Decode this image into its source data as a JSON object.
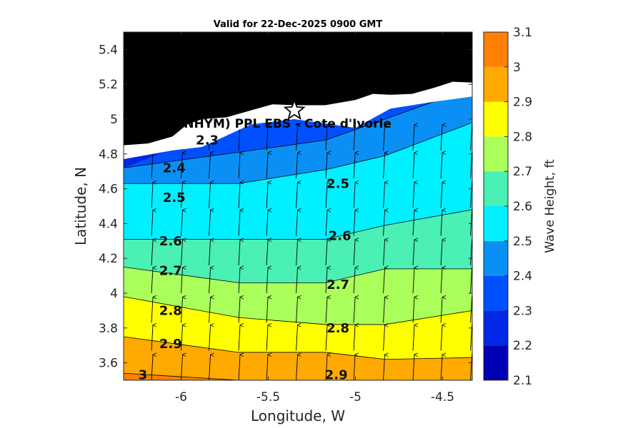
{
  "chart_data": {
    "type": "contour",
    "title": "Valid for 22-Dec-2025 0900 GMT",
    "xlabel": "Longitude, W",
    "ylabel": "Latitude, N",
    "xlim": [
      -6.33,
      -4.33
    ],
    "ylim": [
      3.5,
      5.5
    ],
    "xticks": [
      -6,
      -5.5,
      -5,
      -4.5
    ],
    "xtick_labels": [
      "-6",
      "-5.5",
      "-5",
      "-4.5"
    ],
    "yticks": [
      3.6,
      3.8,
      4,
      4.2,
      4.4,
      4.6,
      4.8,
      5,
      5.2,
      5.4
    ],
    "ytick_labels": [
      "3.6",
      "3.8",
      "4",
      "4.2",
      "4.4",
      "4.6",
      "4.8",
      "5",
      "5.2",
      "5.4"
    ],
    "colorbar": {
      "label": "Wave Height, ft",
      "range": [
        2.1,
        3.1
      ],
      "levels": [
        2.1,
        2.2,
        2.3,
        2.4,
        2.5,
        2.6,
        2.7,
        2.8,
        2.9,
        3.0,
        3.1
      ],
      "tick_labels": [
        "2.1",
        "2.2",
        "2.3",
        "2.4",
        "2.5",
        "2.6",
        "2.7",
        "2.8",
        "2.9",
        "3",
        "3.1"
      ],
      "colors": [
        "#0000b4",
        "#0028e6",
        "#0050ff",
        "#0a90f4",
        "#00f0ff",
        "#4af0b4",
        "#aaff5a",
        "#ffff00",
        "#ffaa00",
        "#ff8000"
      ]
    },
    "grid_lon": [
      -6.33,
      -5.67,
      -5.17,
      -4.83,
      -4.33
    ],
    "contours": [
      {
        "level": 2.4,
        "lat": [
          4.72,
          4.81,
          4.88,
          5.0,
          5.18
        ]
      },
      {
        "level": 2.5,
        "lat": [
          4.63,
          4.63,
          4.71,
          4.79,
          4.98
        ]
      },
      {
        "level": 2.6,
        "lat": [
          4.31,
          4.31,
          4.31,
          4.39,
          4.48
        ]
      },
      {
        "level": 2.7,
        "lat": [
          4.15,
          4.06,
          4.06,
          4.14,
          4.14
        ]
      },
      {
        "level": 2.8,
        "lat": [
          3.98,
          3.86,
          3.82,
          3.82,
          3.9
        ]
      },
      {
        "level": 2.9,
        "lat": [
          3.75,
          3.66,
          3.66,
          3.62,
          3.63
        ]
      },
      {
        "level": 3.0,
        "lat": [
          3.54,
          3.5,
          3.5,
          3.5,
          3.5
        ]
      }
    ],
    "contour_labels": [
      {
        "text": "2.3",
        "lon": -5.85,
        "lat": 4.88
      },
      {
        "text": "2.4",
        "lon": -6.04,
        "lat": 4.72
      },
      {
        "text": "2.5",
        "lon": -6.04,
        "lat": 4.55
      },
      {
        "text": "2.5",
        "lon": -5.1,
        "lat": 4.63
      },
      {
        "text": "2.6",
        "lon": -6.06,
        "lat": 4.3
      },
      {
        "text": "2.6",
        "lon": -5.09,
        "lat": 4.33
      },
      {
        "text": "2.7",
        "lon": -6.06,
        "lat": 4.13
      },
      {
        "text": "2.7",
        "lon": -5.1,
        "lat": 4.05
      },
      {
        "text": "2.8",
        "lon": -6.06,
        "lat": 3.9
      },
      {
        "text": "2.8",
        "lon": -5.1,
        "lat": 3.8
      },
      {
        "text": "2.9",
        "lon": -6.06,
        "lat": 3.71
      },
      {
        "text": "2.9",
        "lon": -5.11,
        "lat": 3.53
      },
      {
        "text": "3",
        "lon": -6.22,
        "lat": 3.53
      }
    ],
    "land_color": "#000000",
    "coast_lat": [
      4.85,
      4.9,
      5.0,
      5.05,
      5.08,
      5.11,
      5.14,
      5.18,
      5.21
    ],
    "coast_lon": [
      -6.33,
      -6.05,
      -5.88,
      -5.6,
      -5.35,
      -5.0,
      -4.8,
      -4.55,
      -4.33
    ],
    "station": {
      "name": "(ONHYM) PPL EBS  - Cote d'Ivorie",
      "lon": -5.35,
      "lat": 5.05
    },
    "vectors": {
      "direction": "north",
      "lons": [
        -6.17,
        -6.0,
        -5.84,
        -5.67,
        -5.51,
        -5.34,
        -5.17,
        -5.01,
        -4.84,
        -4.67,
        -4.51,
        -4.34
      ],
      "lats": [
        3.5,
        3.67,
        3.83,
        4.0,
        4.16,
        4.33,
        4.49,
        4.66,
        4.82
      ]
    }
  }
}
